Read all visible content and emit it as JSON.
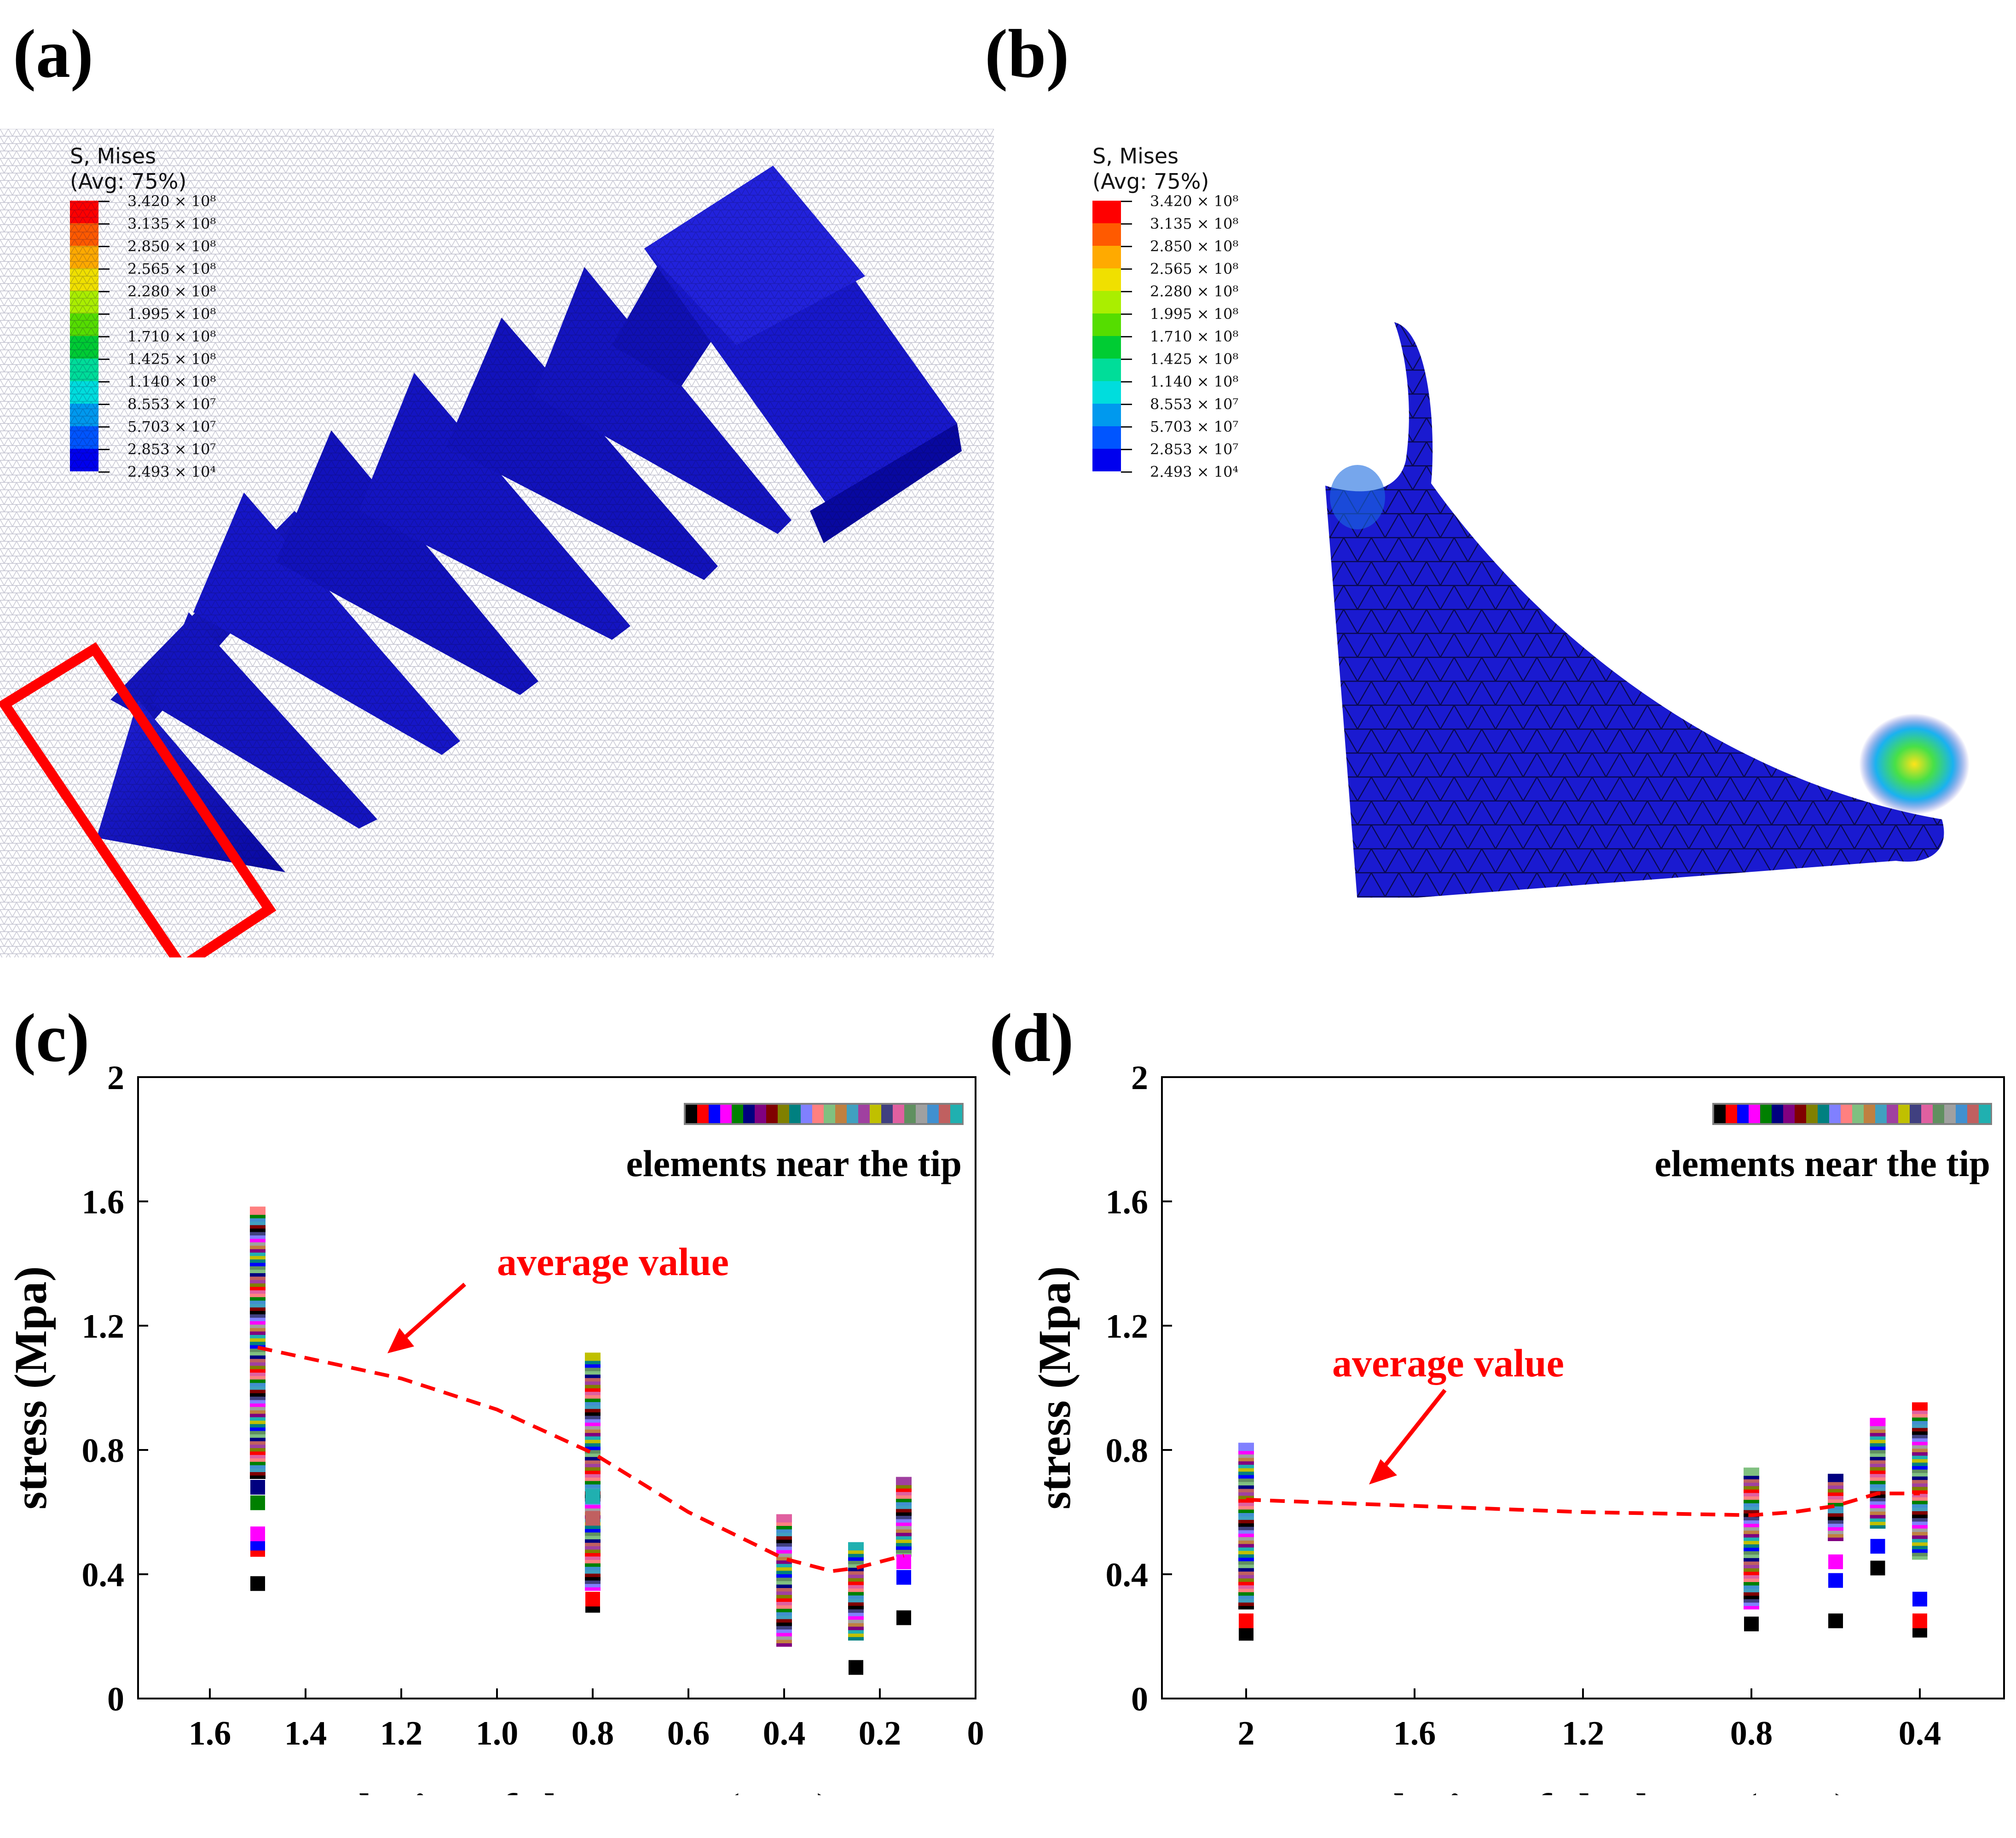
{
  "panels": {
    "a": {
      "label": "(a)"
    },
    "b": {
      "label": "(b)"
    },
    "c": {
      "label": "(c)"
    },
    "d": {
      "label": "(d)"
    }
  },
  "contour_legend": {
    "title_line1": "S, Mises",
    "title_line2": "(Avg: 75%)",
    "levels": [
      "3.420 × 10⁸",
      "3.135 × 10⁸",
      "2.850 × 10⁸",
      "2.565 × 10⁸",
      "2.280 × 10⁸",
      "1.995 × 10⁸",
      "1.710 × 10⁸",
      "1.425 × 10⁸",
      "1.140 × 10⁸",
      "8.553 × 10⁷",
      "5.703 × 10⁷",
      "2.853 × 10⁷",
      "2.493 × 10⁴"
    ],
    "colors": [
      "#ff0000",
      "#ff5a00",
      "#ffaa00",
      "#f0e000",
      "#aaee00",
      "#55dd00",
      "#00cc33",
      "#00dd99",
      "#00dddd",
      "#0099ee",
      "#0055ff",
      "#0000ee"
    ]
  },
  "model_colors": {
    "mesh_base": "#1010b8",
    "highlight_box": "#ff0000"
  },
  "strip_colors": [
    "#000000",
    "#ff0000",
    "#0000ff",
    "#ff00ff",
    "#008000",
    "#000080",
    "#800080",
    "#800000",
    "#808000",
    "#008080",
    "#8080ff",
    "#ff8080",
    "#80c080",
    "#c08040",
    "#40a0c0",
    "#a040a0",
    "#c0c000",
    "#404080",
    "#e060a0",
    "#609060",
    "#a0a0a0",
    "#4090d0",
    "#c06060",
    "#20b0b0"
  ],
  "chart_data": [
    {
      "type": "scatter",
      "title": "",
      "xlabel": "mesh size of the screw (mm)",
      "ylabel": "stress (Mpa)",
      "xlim": [
        1.75,
        0
      ],
      "ylim": [
        0,
        2
      ],
      "x_tick_labels": [
        "1.6",
        "1.4",
        "1.2",
        "1.0",
        "0.8",
        "0.6",
        "0.4",
        "0.2",
        "0"
      ],
      "y_tick_labels": [
        "0",
        "0.4",
        "0.8",
        "1.2",
        "1.6",
        "2"
      ],
      "legend_label": "elements near the tip",
      "annotation": "average value",
      "clusters": [
        {
          "x": 1.5,
          "min": 0.72,
          "max": 1.57,
          "outliers": [
            {
              "y": 0.37,
              "color": "#000000"
            },
            {
              "y": 0.48,
              "color": "#ff0000"
            },
            {
              "y": 0.5,
              "color": "#0000ff"
            },
            {
              "y": 0.53,
              "color": "#ff00ff"
            },
            {
              "y": 0.63,
              "color": "#008000"
            },
            {
              "y": 0.68,
              "color": "#000080"
            }
          ]
        },
        {
          "x": 0.8,
          "min": 0.36,
          "max": 1.1,
          "outliers": [
            {
              "y": 0.3,
              "color": "#000000"
            },
            {
              "y": 0.32,
              "color": "#ff0000"
            },
            {
              "y": 0.58,
              "color": "#c06060"
            },
            {
              "y": 0.65,
              "color": "#20b0b0"
            }
          ]
        },
        {
          "x": 0.4,
          "min": 0.18,
          "max": 0.58,
          "outliers": []
        },
        {
          "x": 0.25,
          "min": 0.2,
          "max": 0.49,
          "outliers": [
            {
              "y": 0.1,
              "color": "#000000"
            }
          ]
        },
        {
          "x": 0.15,
          "min": 0.47,
          "max": 0.7,
          "outliers": [
            {
              "y": 0.26,
              "color": "#000000"
            },
            {
              "y": 0.39,
              "color": "#0000ff"
            },
            {
              "y": 0.44,
              "color": "#ff00ff"
            }
          ]
        }
      ],
      "series": [
        {
          "name": "average value",
          "x": [
            1.5,
            1.2,
            1.0,
            0.8,
            0.6,
            0.4,
            0.3,
            0.25,
            0.15
          ],
          "y": [
            1.13,
            1.03,
            0.93,
            0.79,
            0.6,
            0.45,
            0.41,
            0.42,
            0.46
          ]
        }
      ]
    },
    {
      "type": "scatter",
      "title": "",
      "xlabel": "mesh size of the bone (mm)",
      "ylabel": "stress (Mpa)",
      "xlim": [
        2.2,
        0.2
      ],
      "ylim": [
        0,
        2
      ],
      "x_tick_labels": [
        "2",
        "1.6",
        "1.2",
        "0.8",
        "0.4"
      ],
      "y_tick_labels": [
        "0",
        "0.4",
        "0.8",
        "1.2",
        "1.6",
        "2"
      ],
      "legend_label": "elements near the tip",
      "annotation": "average value",
      "clusters": [
        {
          "x": 2.0,
          "min": 0.3,
          "max": 0.81,
          "outliers": [
            {
              "y": 0.21,
              "color": "#000000"
            },
            {
              "y": 0.25,
              "color": "#ff0000"
            }
          ]
        },
        {
          "x": 0.8,
          "min": 0.3,
          "max": 0.73,
          "outliers": [
            {
              "y": 0.24,
              "color": "#000000"
            }
          ]
        },
        {
          "x": 0.6,
          "min": 0.52,
          "max": 0.71,
          "outliers": [
            {
              "y": 0.25,
              "color": "#000000"
            },
            {
              "y": 0.38,
              "color": "#0000ff"
            },
            {
              "y": 0.44,
              "color": "#ff00ff"
            }
          ]
        },
        {
          "x": 0.5,
          "min": 0.56,
          "max": 0.89,
          "outliers": [
            {
              "y": 0.42,
              "color": "#000000"
            },
            {
              "y": 0.49,
              "color": "#0000ff"
            }
          ]
        },
        {
          "x": 0.4,
          "min": 0.46,
          "max": 0.94,
          "outliers": [
            {
              "y": 0.22,
              "color": "#000000"
            },
            {
              "y": 0.25,
              "color": "#ff0000"
            },
            {
              "y": 0.32,
              "color": "#0000ff"
            }
          ]
        }
      ],
      "series": [
        {
          "name": "average value",
          "x": [
            2.0,
            1.6,
            1.2,
            0.8,
            0.7,
            0.6,
            0.5,
            0.4
          ],
          "y": [
            0.64,
            0.62,
            0.6,
            0.59,
            0.6,
            0.62,
            0.66,
            0.66
          ]
        }
      ]
    }
  ]
}
